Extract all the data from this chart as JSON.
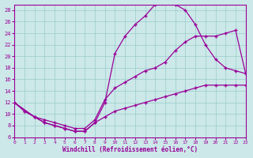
{
  "xlabel": "Windchill (Refroidissement éolien,°C)",
  "bg_color": "#cce8e8",
  "line_color": "#990099",
  "grid_color": "#99cccc",
  "xlim": [
    0,
    23
  ],
  "ylim": [
    6,
    29
  ],
  "xticks": [
    0,
    1,
    2,
    3,
    4,
    5,
    6,
    7,
    8,
    9,
    10,
    11,
    12,
    13,
    14,
    15,
    16,
    17,
    18,
    19,
    20,
    21,
    22,
    23
  ],
  "yticks": [
    6,
    8,
    10,
    12,
    14,
    16,
    18,
    20,
    22,
    24,
    26,
    28
  ],
  "line1_x": [
    0,
    1,
    2,
    3,
    4,
    5,
    6,
    7,
    8,
    9,
    10,
    11,
    12,
    13,
    14,
    15,
    16,
    17,
    18,
    19,
    20,
    21,
    22,
    23
  ],
  "line1_y": [
    12,
    10.5,
    9.5,
    8.5,
    8.0,
    7.5,
    7.0,
    7.0,
    8.5,
    9.5,
    10.5,
    11.0,
    11.5,
    12.0,
    12.5,
    13.0,
    13.5,
    14.0,
    14.5,
    15.0,
    15.0,
    15.0,
    15.0,
    15.0
  ],
  "line2_x": [
    0,
    1,
    2,
    3,
    4,
    5,
    6,
    7,
    8,
    9,
    10,
    11,
    12,
    13,
    14,
    15,
    16,
    17,
    18,
    19,
    20,
    21,
    22,
    23
  ],
  "line2_y": [
    12,
    10.5,
    9.5,
    8.5,
    8.0,
    7.5,
    7.0,
    7.0,
    8.5,
    12.0,
    20.5,
    23.5,
    25.5,
    27.0,
    29.0,
    29.5,
    29.0,
    28.0,
    25.5,
    22.0,
    19.5,
    18.0,
    17.5,
    17.0
  ],
  "line3_x": [
    0,
    2,
    3,
    4,
    5,
    6,
    7,
    8,
    9,
    10,
    11,
    12,
    13,
    14,
    15,
    16,
    17,
    18,
    19,
    20,
    21,
    22,
    23
  ],
  "line3_y": [
    12,
    9.5,
    9.0,
    8.5,
    8.0,
    7.5,
    7.5,
    9.0,
    12.5,
    14.5,
    15.5,
    16.5,
    17.5,
    18.0,
    19.0,
    21.0,
    22.5,
    23.5,
    23.5,
    23.5,
    24.0,
    24.5,
    17.0
  ]
}
